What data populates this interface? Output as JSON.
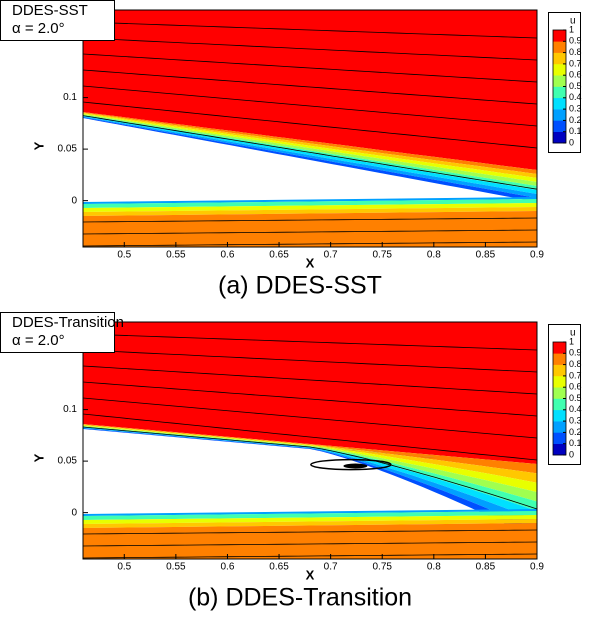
{
  "chart_data": [
    {
      "type": "contour",
      "title": "DDES-SST",
      "annotation": "α = 2.0°",
      "caption": "(a) DDES-SST",
      "xlabel": "X",
      "ylabel": "Y",
      "xlim": [
        0.46,
        0.9
      ],
      "ylim": [
        -0.045,
        0.185
      ],
      "xticks": [
        0.5,
        0.55,
        0.6,
        0.65,
        0.7,
        0.75,
        0.8,
        0.85,
        0.9
      ],
      "yticks": [
        0,
        0.05,
        0.1
      ],
      "colorbar": {
        "title": "u",
        "lim": [
          0,
          1
        ],
        "ticks": [
          1,
          0.9,
          0.8,
          0.7,
          0.6,
          0.5,
          0.4,
          0.3,
          0.2,
          0.1,
          0
        ]
      },
      "colormap": [
        "#0000c0",
        "#0050ff",
        "#00a0ff",
        "#00e0ff",
        "#40ffb0",
        "#a0ff50",
        "#e8ff00",
        "#ffc800",
        "#ff8000",
        "#ff0000"
      ],
      "separation_bubble": false
    },
    {
      "type": "contour",
      "title": "DDES-Transition",
      "annotation": "α = 2.0°",
      "caption": "(b) DDES-Transition",
      "xlabel": "X",
      "ylabel": "Y",
      "xlim": [
        0.46,
        0.9
      ],
      "ylim": [
        -0.045,
        0.185
      ],
      "xticks": [
        0.5,
        0.55,
        0.6,
        0.65,
        0.7,
        0.75,
        0.8,
        0.85,
        0.9
      ],
      "yticks": [
        0,
        0.05,
        0.1
      ],
      "colorbar": {
        "title": "u",
        "lim": [
          0,
          1
        ],
        "ticks": [
          1,
          0.9,
          0.8,
          0.7,
          0.6,
          0.5,
          0.4,
          0.3,
          0.2,
          0.1,
          0
        ]
      },
      "colormap": [
        "#0000c0",
        "#0050ff",
        "#00a0ff",
        "#00e0ff",
        "#40ffb0",
        "#a0ff50",
        "#e8ff00",
        "#ffc800",
        "#ff8000",
        "#ff0000"
      ],
      "separation_bubble": true
    }
  ]
}
